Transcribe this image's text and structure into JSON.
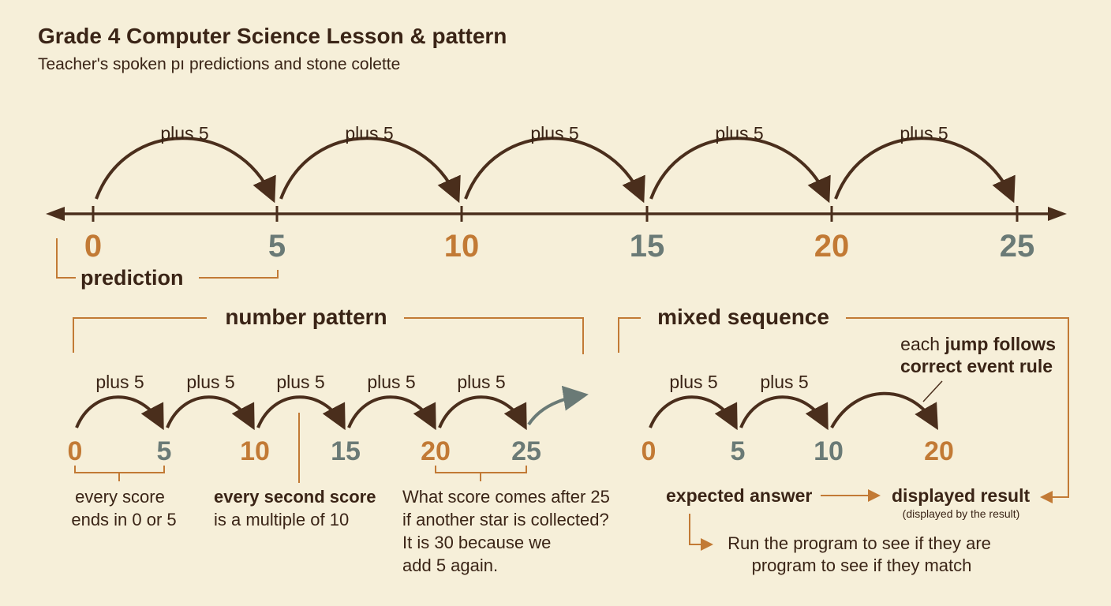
{
  "header": {
    "title": "Grade 4 Computer Science Lesson & pattern",
    "subtitle": "Teacher's spoken pı predictions and stone colette"
  },
  "top_line": {
    "jump_label": "plus 5",
    "ticks": [
      "0",
      "5",
      "10",
      "15",
      "20",
      "25"
    ],
    "prediction_label": "prediction"
  },
  "number_pattern": {
    "heading": "number pattern",
    "jump_label": "plus 5",
    "values": [
      "0",
      "5",
      "10",
      "15",
      "20",
      "25"
    ],
    "note_1": [
      "every score",
      "ends in 0 or 5"
    ],
    "note_2": [
      "every second score",
      "is a multiple of 10"
    ],
    "note_3": [
      "What score comes after 25",
      "if another star is collected?",
      "It is 30 because we",
      "add 5 again."
    ]
  },
  "mixed_sequence": {
    "heading": "mixed sequence",
    "jump_label": "plus 5",
    "values": [
      "0",
      "5",
      "10",
      "20"
    ],
    "rule_note": {
      "plain": "each ",
      "bold_1": "jump follows",
      "bold_2": "correct event rule"
    },
    "expected_label": "expected answer",
    "displayed_label": "displayed result",
    "displayed_sub": "(displayed by the result)",
    "run_note": [
      "Run the program to see if they are",
      "program to see if they match"
    ]
  },
  "colors": {
    "background": "#f6efd9",
    "text": "#3a2416",
    "line": "#4a2e1c",
    "orange": "#c27a35",
    "gray": "#6a7a76"
  }
}
